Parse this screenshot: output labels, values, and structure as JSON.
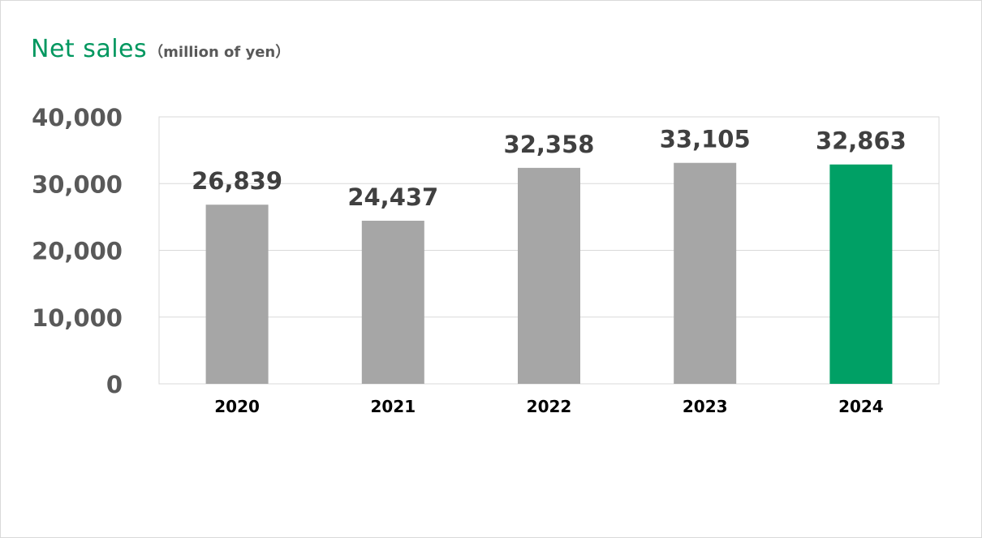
{
  "colors": {
    "bar_default": "#a6a6a6",
    "bar_highlight": "#00a065",
    "title": "#00975f",
    "axis_text": "#595959",
    "value_text": "#404040",
    "category_text": "#000000",
    "gridline": "#d9d9d9"
  },
  "chart_data": {
    "type": "bar",
    "title": "Net sales",
    "unit": "（million of yen）",
    "categories": [
      "2020",
      "2021",
      "2022",
      "2023",
      "2024"
    ],
    "values": [
      26839,
      24437,
      32358,
      33105,
      32863
    ],
    "value_labels": [
      "26,839",
      "24,437",
      "32,358",
      "33,105",
      "32,863"
    ],
    "highlight_index": 4,
    "ylim": [
      0,
      40000
    ],
    "yticks": [
      0,
      10000,
      20000,
      30000,
      40000
    ],
    "ytick_labels": [
      "0",
      "10,000",
      "20,000",
      "30,000",
      "40,000"
    ],
    "grid": true,
    "legend": "none"
  }
}
